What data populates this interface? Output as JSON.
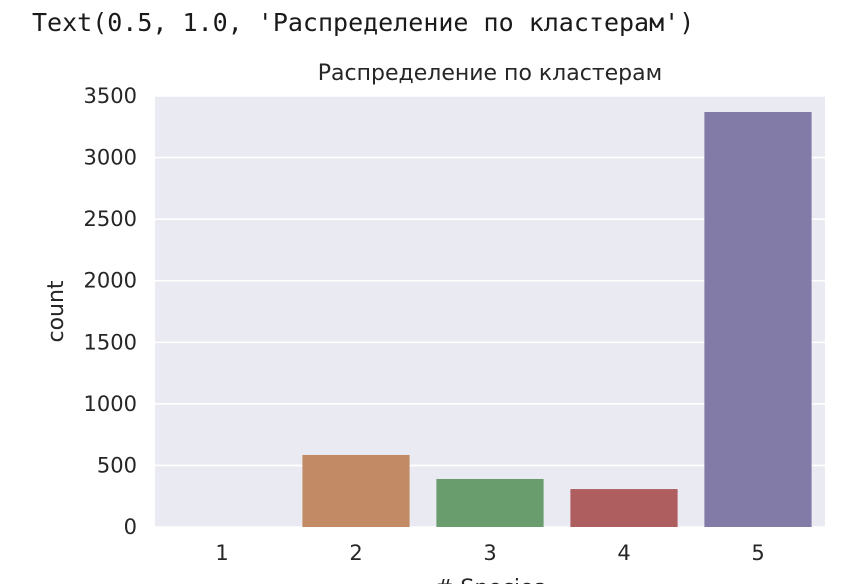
{
  "output_text": "Text(0.5, 1.0, 'Распределение по кластерам')",
  "chart_data": {
    "type": "bar",
    "title": "Распределение по кластерам",
    "xlabel": "# Species",
    "ylabel": "count",
    "categories": [
      "1",
      "2",
      "3",
      "4",
      "5"
    ],
    "values": [
      0,
      585,
      390,
      308,
      3370
    ],
    "ylim": [
      0,
      3500
    ],
    "yticks": [
      0,
      500,
      1000,
      1500,
      2000,
      2500,
      3000,
      3500
    ],
    "colors": [
      "#4c72b0",
      "#c38b65",
      "#6a9d6e",
      "#ae5e5f",
      "#827aa7"
    ],
    "grid": true,
    "background": "#eaeaf2"
  }
}
